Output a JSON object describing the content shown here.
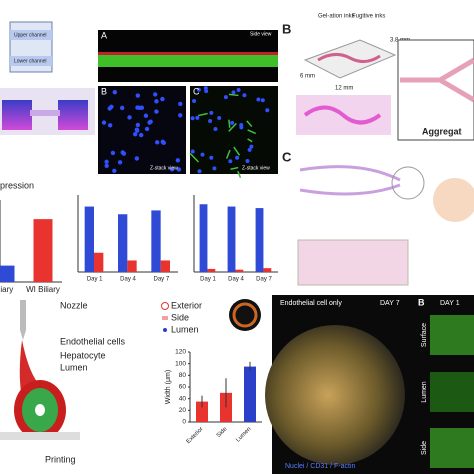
{
  "chart_data": [
    {
      "type": "bar",
      "title": "pression",
      "categories": [
        "iliary",
        "WI Biliary"
      ],
      "values": [
        1.2,
        4.6
      ],
      "colors": [
        "#2f4bd6",
        "#e8332e"
      ],
      "ylim": [
        0,
        6
      ]
    },
    {
      "type": "grouped-bar",
      "categories": [
        "Day 1",
        "Day 4",
        "Day 7"
      ],
      "series": [
        {
          "color": "#2f4bd6",
          "values": [
            85,
            75,
            80
          ]
        },
        {
          "color": "#e8332e",
          "values": [
            25,
            15,
            15
          ]
        }
      ],
      "ylim": [
        0,
        100
      ]
    },
    {
      "type": "grouped-bar",
      "categories": [
        "Day 1",
        "Day 4",
        "Day 7"
      ],
      "series": [
        {
          "color": "#2f4bd6",
          "values": [
            88,
            85,
            83
          ]
        },
        {
          "color": "#e8332e",
          "values": [
            4,
            3,
            5
          ]
        }
      ],
      "ylim": [
        0,
        100
      ]
    },
    {
      "type": "bar",
      "categories": [
        "Exterior",
        "Side",
        "Lumen"
      ],
      "values": [
        35,
        50,
        95
      ],
      "errors": [
        10,
        25,
        8
      ],
      "colors": [
        "#e8332e",
        "#e8332e",
        "#2c3fc8"
      ],
      "ylabel": "Width (μm)",
      "ylim": [
        0,
        120
      ],
      "yticks": [
        0,
        20,
        40,
        60,
        80,
        100,
        120
      ]
    }
  ],
  "panels": {
    "top_left": [
      "Upper channel",
      "Lower channel"
    ],
    "top_middle": [
      "A",
      "B",
      "C",
      "Side view",
      "Z-stack view",
      "Z-stack view"
    ],
    "top_right": [
      "B",
      "Gel-ation inks",
      "Fugitive inks",
      "12 mm",
      "6 mm",
      "3.8 mm",
      "Aggregat"
    ],
    "right_middle": [
      "C"
    ],
    "bottom_left": [
      "Nozzle",
      "Endothelial cells",
      "Hepatocyte",
      "Lumen",
      "Printing"
    ],
    "bottom_middle": [
      "Exterior",
      "Side",
      "Lumen"
    ],
    "bottom_right": [
      "Endothelial cell only",
      "DAY 7",
      "B",
      "DAY 1",
      "Surface",
      "Lumen",
      "Side",
      "Nuclei / CD31 / F-actin"
    ]
  }
}
